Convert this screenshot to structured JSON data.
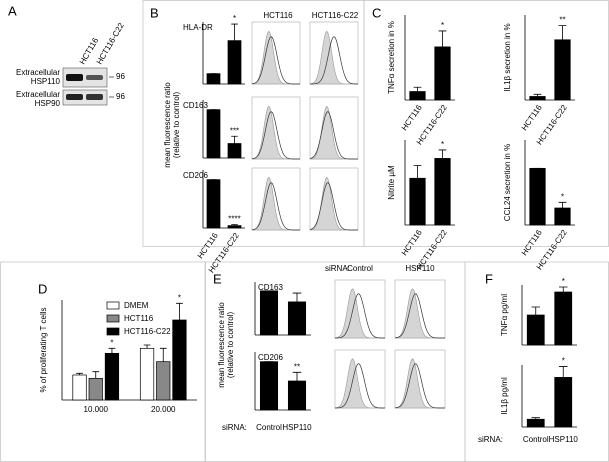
{
  "panels": {
    "A": {
      "letter": "A",
      "lanes": [
        "HCT116",
        "HCT116-C22"
      ],
      "bands": [
        {
          "label": [
            "Extracellular",
            "HSP110"
          ],
          "marker": 96
        },
        {
          "label": [
            "Extracellular",
            "HSP90"
          ],
          "marker": 96
        }
      ]
    },
    "B": {
      "letter": "B",
      "ylabel": [
        "mean fluorescence ratio",
        "(relative to control)"
      ],
      "columns": [
        "HCT116",
        "HCT116-C22"
      ]
    },
    "C": {
      "letter": "C"
    },
    "D": {
      "letter": "D"
    },
    "E": {
      "letter": "E",
      "ylabel": [
        "mean fluorescence ratio",
        "(relative to control)"
      ],
      "prefix": "siRNA:",
      "columns": [
        "Control",
        "HSP110"
      ]
    },
    "F": {
      "letter": "F"
    }
  },
  "chart_data": [
    {
      "type": "bar",
      "title": "HLA-DR",
      "categories": [
        "HCT116",
        "HCT116-C22"
      ],
      "values": [
        1,
        4.2
      ],
      "errors": [
        0,
        1.6
      ],
      "ylim": [
        0,
        6
      ],
      "color": "#000000",
      "annotations": [
        {
          "category": "HCT116-C22",
          "label": "*"
        }
      ]
    },
    {
      "type": "bar",
      "title": "CD163",
      "categories": [
        "HCT116",
        "HCT116-C22"
      ],
      "values": [
        1,
        0.3
      ],
      "errors": [
        0,
        0.15
      ],
      "ylim": [
        0,
        1.2
      ],
      "color": "#000000",
      "annotations": [
        {
          "category": "HCT116-C22",
          "label": "***"
        }
      ]
    },
    {
      "type": "bar",
      "title": "CD206",
      "categories": [
        "HCT116",
        "HCT116-C22"
      ],
      "values": [
        1,
        0.05
      ],
      "errors": [
        0,
        0.02
      ],
      "ylim": [
        0,
        1.2
      ],
      "color": "#000000",
      "annotations": [
        {
          "category": "HCT116-C22",
          "label": "****"
        }
      ]
    },
    {
      "type": "bar",
      "ylabel": "TNFα secretion in %",
      "categories": [
        "HCT116",
        "HCT116-C22"
      ],
      "values": [
        8,
        50
      ],
      "errors": [
        4,
        15
      ],
      "ylim": [
        0,
        80
      ],
      "color": "#000000",
      "annotations": [
        {
          "category": "HCT116-C22",
          "label": "*"
        }
      ]
    },
    {
      "type": "bar",
      "ylabel": "IL1β secretion in %",
      "categories": [
        "HCT116",
        "HCT116-C22"
      ],
      "values": [
        50,
        850
      ],
      "errors": [
        30,
        200
      ],
      "ylim": [
        0,
        1200
      ],
      "color": "#000000",
      "annotations": [
        {
          "category": "HCT116-C22",
          "label": "**"
        }
      ]
    },
    {
      "type": "bar",
      "ylabel": "Nitrite µM",
      "categories": [
        "HCT116",
        "HCT116-C22"
      ],
      "values": [
        3.3,
        4.7
      ],
      "errors": [
        0.9,
        0.6
      ],
      "ylim": [
        0,
        6
      ],
      "color": "#000000",
      "annotations": [
        {
          "category": "HCT116-C22",
          "label": "*"
        }
      ]
    },
    {
      "type": "bar",
      "ylabel": "CCL24 secretion in %",
      "categories": [
        "HCT116",
        "HCT116-C22"
      ],
      "values": [
        100,
        30
      ],
      "errors": [
        0,
        10
      ],
      "ylim": [
        0,
        150
      ],
      "color": "#000000",
      "annotations": [
        {
          "category": "HCT116-C22",
          "label": "*"
        }
      ]
    },
    {
      "type": "grouped_bar",
      "ylabel": "% of proliferating T cells",
      "categories": [
        "10.000",
        "20.000"
      ],
      "ylim": [
        0,
        30
      ],
      "legend": "upper-left",
      "series": [
        {
          "name": "DMEM",
          "color": "#ffffff",
          "values": [
            7.5,
            15.5
          ],
          "errors": [
            0.5,
            1
          ]
        },
        {
          "name": "HCT116",
          "color": "#888888",
          "values": [
            6.5,
            11.5
          ],
          "errors": [
            2,
            4
          ]
        },
        {
          "name": "HCT116-C22",
          "color": "#000000",
          "values": [
            14,
            24
          ],
          "errors": [
            1.5,
            5
          ]
        }
      ],
      "annotations": [
        {
          "series": "HCT116-C22",
          "category": "10.000",
          "label": "*"
        },
        {
          "series": "HCT116-C22",
          "category": "20.000",
          "label": "*"
        }
      ]
    },
    {
      "type": "bar",
      "title": "CD163",
      "categories": [
        "Control",
        "HSP110"
      ],
      "values": [
        1,
        0.75
      ],
      "errors": [
        0,
        0.2
      ],
      "ylim": [
        0,
        1.2
      ],
      "color": "#000000",
      "annotations": []
    },
    {
      "type": "bar",
      "title": "CD206",
      "prefix": "siRNA:",
      "categories": [
        "Control",
        "HSP110"
      ],
      "values": [
        1,
        0.6
      ],
      "errors": [
        0,
        0.18
      ],
      "ylim": [
        0,
        1.2
      ],
      "color": "#000000",
      "annotations": [
        {
          "category": "HSP110",
          "label": "**"
        }
      ]
    },
    {
      "type": "bar",
      "ylabel": "TNFα pg/ml",
      "categories": [
        "Control",
        "HSP110"
      ],
      "values": [
        150,
        265
      ],
      "errors": [
        40,
        25
      ],
      "ylim": [
        0,
        300
      ],
      "color": "#000000",
      "annotations": [
        {
          "category": "HSP110",
          "label": "*"
        }
      ]
    },
    {
      "type": "bar",
      "ylabel": "IL1β pg/ml",
      "prefix": "siRNA:",
      "categories": [
        "Control",
        "HSP110"
      ],
      "values": [
        25,
        160
      ],
      "errors": [
        5,
        35
      ],
      "ylim": [
        0,
        200
      ],
      "color": "#000000",
      "annotations": [
        {
          "category": "HSP110",
          "label": "*"
        }
      ]
    }
  ]
}
